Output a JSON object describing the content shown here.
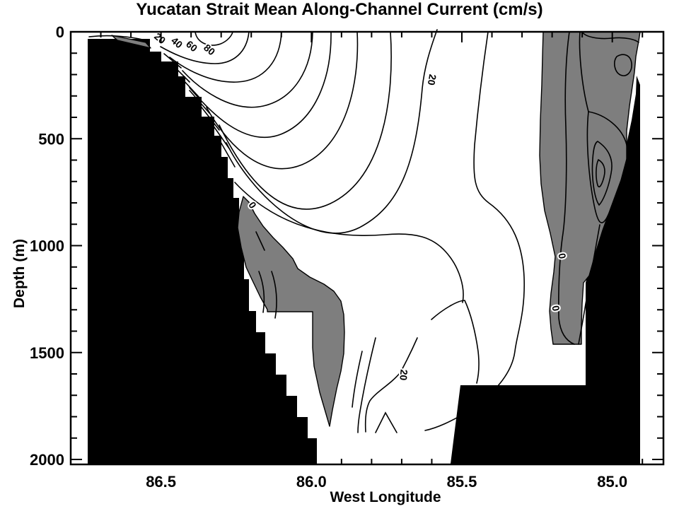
{
  "title": "Yucatan Strait Mean Along-Channel Current (cm/s)",
  "colors": {
    "background": "#ffffff",
    "land_mask": "#000000",
    "negative_shade": "#7e7e7e",
    "contour_line": "#000000"
  },
  "axes": {
    "x": {
      "label": "West Longitude",
      "major_tick_labels": [
        "86.5",
        "86.0",
        "85.5",
        "85.0"
      ],
      "major_tick_values": [
        86.5,
        86.0,
        85.5,
        85.0
      ],
      "range_deg_west": [
        86.8,
        84.83
      ],
      "minor_tick_step": 0.1
    },
    "y": {
      "label": "Depth (m)",
      "major_tick_labels": [
        "0",
        "500",
        "1000",
        "1500",
        "2000"
      ],
      "major_tick_values": [
        0,
        500,
        1000,
        1500,
        2000
      ],
      "range_m": [
        0,
        2000
      ],
      "minor_tick_step": 100
    }
  },
  "chart_data": {
    "type": "contour",
    "title": "Yucatan Strait Mean Along-Channel Current (cm/s)",
    "xlabel": "West Longitude",
    "ylabel": "Depth (m)",
    "units": "cm/s",
    "x_range_deg_west": [
      86.8,
      84.83
    ],
    "y_range_m": [
      0,
      2000
    ],
    "grid": false,
    "legend": null,
    "contour_interval_cm_s": 10,
    "labeled_levels_cm_s": [
      0,
      20,
      40,
      60,
      80
    ],
    "contour_labels": [
      {
        "text": "20",
        "lon_w": 86.21,
        "depth_m": 38,
        "px": [
          223,
          58
        ],
        "rot": 40
      },
      {
        "text": "40",
        "lon_w": 86.15,
        "depth_m": 60,
        "px": [
          247,
          64
        ],
        "rot": 40
      },
      {
        "text": "60",
        "lon_w": 86.1,
        "depth_m": 76,
        "px": [
          268,
          69
        ],
        "rot": 40
      },
      {
        "text": "80",
        "lon_w": 86.05,
        "depth_m": 92,
        "px": [
          293,
          74
        ],
        "rot": 40
      },
      {
        "text": "20",
        "lon_w": 85.6,
        "depth_m": 215,
        "px": [
          606,
          112
        ],
        "rot": 100
      },
      {
        "text": "0",
        "lon_w": 86.21,
        "depth_m": 820,
        "px": [
          353,
          293
        ],
        "rot": 55
      },
      {
        "text": "0",
        "lon_w": 85.18,
        "depth_m": 1050,
        "px": [
          790,
          363
        ],
        "rot": 80
      },
      {
        "text": "0",
        "lon_w": 85.2,
        "depth_m": 1295,
        "px": [
          781,
          437
        ],
        "rot": 80
      },
      {
        "text": "20",
        "lon_w": 85.71,
        "depth_m": 1600,
        "px": [
          566,
          530
        ],
        "rot": 95
      }
    ],
    "features": {
      "positive_jet_core": "Maximum northward along-channel flow >80 cm/s in upper ~150 m over the western slope (~86.4-86.0 W); contours fan outward from the core every 10 cm/s",
      "negative_regions_shaded_gray": [
        "Eastern boundary band (~85.25-84.95 W) from the surface to ~1450 m, with closed minima near 700 m",
        "Western mid-depth patch (~86.25-86.05 W) from ~780 m to ~1850 m",
        "Thin near-surface sliver on the upper western slope (~86.65 W)"
      ],
      "land_mask_black": "Yucatan shelf/slope on the west; Cuban slope on the east; sill near 2000 m in channel center"
    }
  }
}
